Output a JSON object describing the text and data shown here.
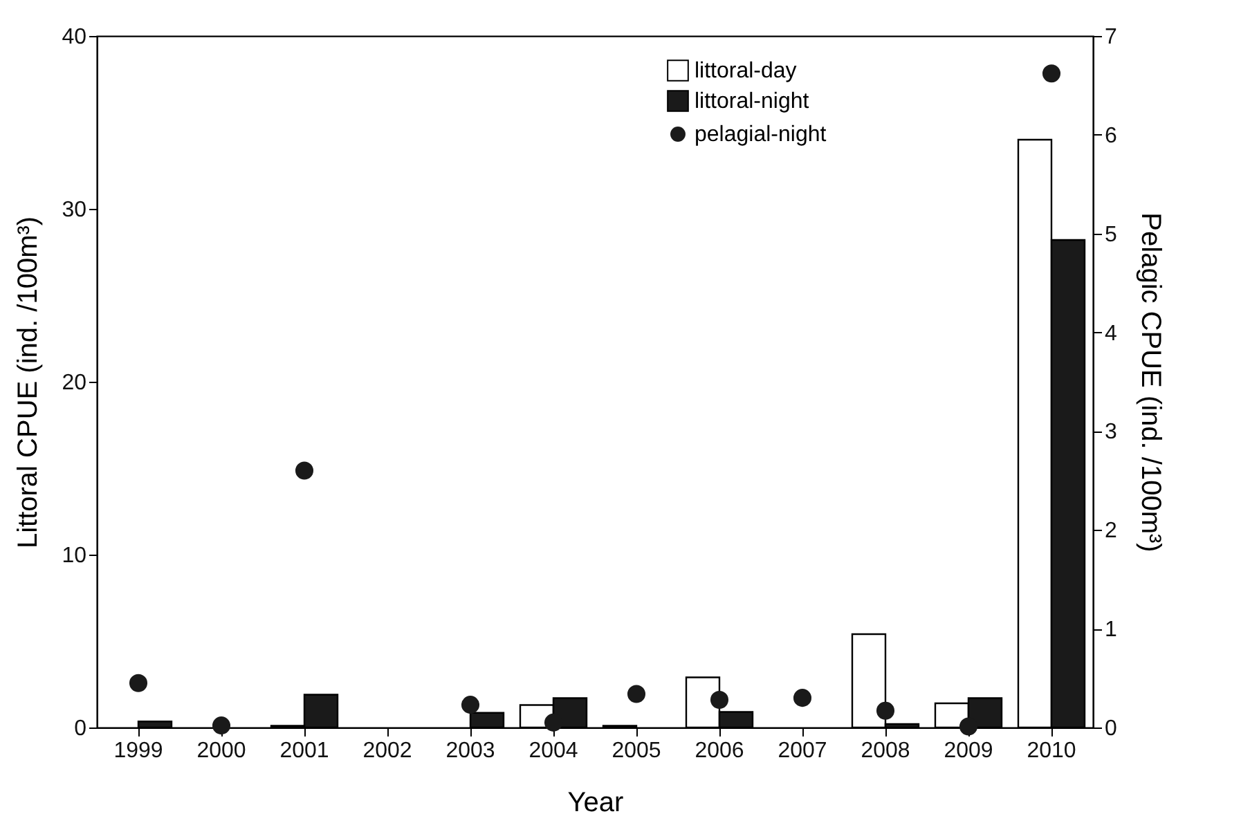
{
  "chart_data": {
    "type": "bar",
    "xlabel": "Year",
    "ylabel": "Littoral CPUE (ind. /100m³)",
    "y2label": "Pelagic CPUE (ind. /100m³)",
    "categories": [
      "1999",
      "2000",
      "2001",
      "2002",
      "2003",
      "2004",
      "2005",
      "2006",
      "2007",
      "2008",
      "2009",
      "2010"
    ],
    "series": [
      {
        "name": "littoral-day",
        "color": "#ffffff",
        "values": [
          null,
          null,
          0.1,
          null,
          null,
          1.3,
          0.1,
          2.9,
          null,
          5.4,
          1.4,
          34.0
        ]
      },
      {
        "name": "littoral-night",
        "color": "#1a1a1a",
        "values": [
          0.35,
          null,
          1.9,
          null,
          0.85,
          1.7,
          null,
          0.9,
          null,
          0.2,
          1.7,
          28.2
        ]
      },
      {
        "name": "pelagial-night",
        "type": "scatter",
        "axis": "y2",
        "marker": "circle",
        "color": "#1a1a1a",
        "values": [
          0.45,
          0.02,
          2.6,
          null,
          0.23,
          0.05,
          0.34,
          0.28,
          0.3,
          0.17,
          0.01,
          6.62
        ]
      }
    ],
    "ylim": [
      0,
      40
    ],
    "yticks": [
      0,
      10,
      20,
      30,
      40
    ],
    "y2lim": [
      0,
      7
    ],
    "y2ticks": [
      0,
      1,
      2,
      3,
      4,
      5,
      6,
      7
    ],
    "grid": false,
    "legend": "top right"
  }
}
